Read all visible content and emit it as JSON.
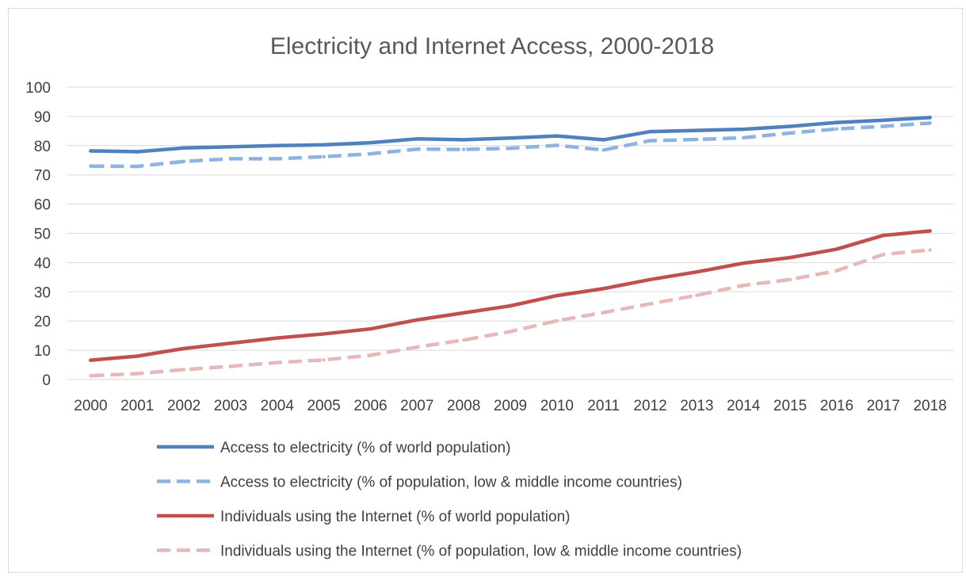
{
  "chart_data": {
    "type": "line",
    "title": "Electricity and Internet Access, 2000-2018",
    "xlabel": "",
    "ylabel": "",
    "ylim": [
      0,
      100
    ],
    "yticks": [
      0,
      10,
      20,
      30,
      40,
      50,
      60,
      70,
      80,
      90,
      100
    ],
    "grid": true,
    "legend_position": "bottom",
    "categories": [
      "2000",
      "2001",
      "2002",
      "2003",
      "2004",
      "2005",
      "2006",
      "2007",
      "2008",
      "2009",
      "2010",
      "2011",
      "2012",
      "2013",
      "2014",
      "2015",
      "2016",
      "2017",
      "2018"
    ],
    "series": [
      {
        "name": "Access to electricity (% of world population)",
        "color": "#4f81bd",
        "style": "solid",
        "values": [
          78.2,
          77.9,
          79.2,
          79.6,
          80.0,
          80.3,
          81.0,
          82.3,
          82.0,
          82.6,
          83.3,
          82.0,
          84.8,
          85.2,
          85.6,
          86.6,
          87.9,
          88.7,
          89.6
        ]
      },
      {
        "name": "Access to electricity (% of population, low & middle income countries)",
        "color": "#8db3e2",
        "style": "dashed",
        "values": [
          73.0,
          72.9,
          74.6,
          75.5,
          75.5,
          76.2,
          77.2,
          78.8,
          78.7,
          79.1,
          80.1,
          78.5,
          81.7,
          82.1,
          82.7,
          84.3,
          85.7,
          86.6,
          87.7
        ]
      },
      {
        "name": "Individuals using the Internet (% of world population)",
        "color": "#c0504d",
        "style": "solid",
        "values": [
          6.6,
          8.0,
          10.6,
          12.4,
          14.2,
          15.6,
          17.3,
          20.4,
          22.8,
          25.2,
          28.7,
          31.1,
          34.2,
          36.8,
          39.8,
          41.7,
          44.6,
          49.3,
          50.8
        ]
      },
      {
        "name": "Individuals using the Internet (% of population, low & middle income countries)",
        "color": "#e6b9b8",
        "style": "dashed",
        "values": [
          1.3,
          2.0,
          3.4,
          4.5,
          5.8,
          6.7,
          8.3,
          11.1,
          13.5,
          16.4,
          20.1,
          22.9,
          25.9,
          28.8,
          32.2,
          34.2,
          37.2,
          42.8,
          44.3
        ]
      }
    ]
  }
}
